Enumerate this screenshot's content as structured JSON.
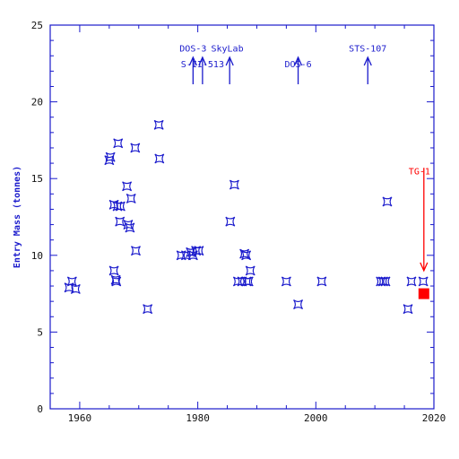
{
  "chart_data": {
    "type": "scatter",
    "title": "",
    "xlabel": "",
    "ylabel": "Entry Mass (tonnes)",
    "xlim": [
      1955,
      2020
    ],
    "ylim": [
      0,
      25
    ],
    "x_ticks": [
      1960,
      1980,
      2000,
      2020
    ],
    "y_ticks": [
      0,
      5,
      10,
      15,
      20,
      25
    ],
    "grid": false,
    "series": [
      {
        "marker": "star4",
        "color": "#1a1acc",
        "points": [
          [
            1958.2,
            7.9
          ],
          [
            1958.7,
            8.3
          ],
          [
            1959.3,
            7.8
          ],
          [
            1965.0,
            16.2
          ],
          [
            1965.2,
            16.4
          ],
          [
            1965.8,
            13.3
          ],
          [
            1965.8,
            9.0
          ],
          [
            1966.1,
            8.4
          ],
          [
            1966.2,
            8.3
          ],
          [
            1966.4,
            13.2
          ],
          [
            1966.5,
            17.3
          ],
          [
            1966.8,
            12.2
          ],
          [
            1966.9,
            13.2
          ],
          [
            1968.0,
            14.5
          ],
          [
            1968.2,
            12.0
          ],
          [
            1968.5,
            11.8
          ],
          [
            1968.7,
            13.7
          ],
          [
            1969.4,
            17.0
          ],
          [
            1969.5,
            10.3
          ],
          [
            1971.5,
            6.5
          ],
          [
            1973.4,
            18.5
          ],
          [
            1973.5,
            16.3
          ],
          [
            1977.2,
            10.0
          ],
          [
            1978.0,
            10.0
          ],
          [
            1978.8,
            10.2
          ],
          [
            1979.2,
            10.0
          ],
          [
            1979.7,
            10.3
          ],
          [
            1980.2,
            10.3
          ],
          [
            1985.5,
            12.2
          ],
          [
            1986.2,
            14.6
          ],
          [
            1986.8,
            8.3
          ],
          [
            1987.5,
            8.3
          ],
          [
            1987.9,
            10.1
          ],
          [
            1988.2,
            10.0
          ],
          [
            1988.6,
            8.3
          ],
          [
            1988.9,
            9.0
          ],
          [
            1988.3,
            8.3
          ],
          [
            1995.0,
            8.3
          ],
          [
            1997.0,
            6.8
          ],
          [
            2001.0,
            8.3
          ],
          [
            2011.0,
            8.3
          ],
          [
            2011.4,
            8.3
          ],
          [
            2011.8,
            8.3
          ],
          [
            2012.1,
            13.5
          ],
          [
            2015.6,
            6.5
          ],
          [
            2016.2,
            8.3
          ],
          [
            2018.2,
            8.3
          ]
        ]
      }
    ],
    "highlight": {
      "x": 2018.3,
      "y": 7.5,
      "marker": "square",
      "color": "#ff0000"
    },
    "annotations": [
      {
        "text": "DOS-3",
        "x": 1979.2,
        "y": 23.5,
        "color": "#1a1acc"
      },
      {
        "text": "SkyLab",
        "x": 1985.0,
        "y": 23.5,
        "color": "#1a1acc"
      },
      {
        "text": "S-II-513",
        "x": 1980.8,
        "y": 22.5,
        "color": "#1a1acc"
      },
      {
        "text": "DOS-6",
        "x": 1997.0,
        "y": 22.5,
        "color": "#1a1acc"
      },
      {
        "text": "STS-107",
        "x": 2008.8,
        "y": 23.5,
        "color": "#1a1acc"
      },
      {
        "text": "TG-1",
        "x": 2018.3,
        "y": 15.5,
        "color": "#ff0000"
      }
    ],
    "arrows": [
      {
        "x": 1979.2,
        "y_from": 21.5,
        "y_to": 21.8,
        "up": true,
        "color": "#1a1acc"
      },
      {
        "x": 1980.8,
        "y_from": 21.5,
        "y_to": 21.8,
        "up": true,
        "color": "#1a1acc"
      },
      {
        "x": 1985.4,
        "y_from": 21.5,
        "y_to": 21.8,
        "up": true,
        "color": "#1a1acc"
      },
      {
        "x": 1997.0,
        "y_from": 21.5,
        "y_to": 21.8,
        "up": true,
        "color": "#1a1acc"
      },
      {
        "x": 2008.8,
        "y_from": 21.5,
        "y_to": 21.8,
        "up": true,
        "color": "#1a1acc"
      },
      {
        "x": 2018.3,
        "y_from": 15.0,
        "y_to": 9.0,
        "up": false,
        "color": "#ff0000"
      }
    ]
  }
}
